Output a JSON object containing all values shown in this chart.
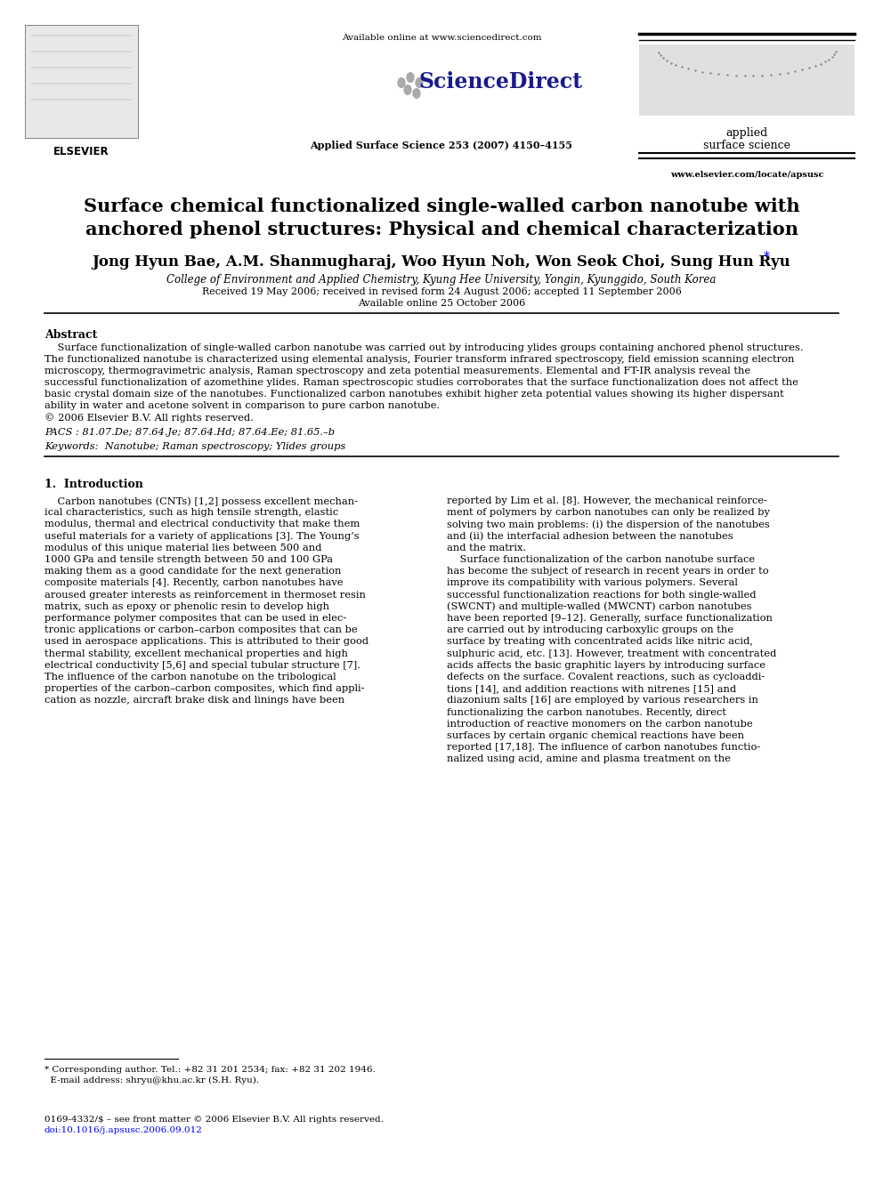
{
  "bg_color": "#ffffff",
  "header_available_text": "Available online at www.sciencedirect.com",
  "header_journal_text": "Applied Surface Science 253 (2007) 4150–4155",
  "journal_name_line1": "applied",
  "journal_name_line2": "surface science",
  "journal_url": "www.elsevier.com/locate/apsusc",
  "elsevier_text": "ELSEVIER",
  "sciencedirect_text": "ScienceDirect",
  "title_line1": "Surface chemical functionalized single-walled carbon nanotube with",
  "title_line2": "anchored phenol structures: Physical and chemical characterization",
  "authors": "Jong Hyun Bae, A.M. Shanmugharaj, Woo Hyun Noh, Won Seok Choi, Sung Hun Ryu",
  "affiliation": "College of Environment and Applied Chemistry, Kyung Hee University, Yongin, Kyunggido, South Korea",
  "received_dates": "Received 19 May 2006; received in revised form 24 August 2006; accepted 11 September 2006",
  "available_online": "Available online 25 October 2006",
  "abstract_title": "Abstract",
  "pacs_text": "PACS : 81.07.De; 87.64.Je; 87.64.Hd; 87.64.Ee; 81.65.–b",
  "keywords_text": "Keywords:  Nanotube; Raman spectroscopy; Ylides groups",
  "section1_title": "1.  Introduction",
  "footer_issn": "0169-4332/$ – see front matter © 2006 Elsevier B.V. All rights reserved.",
  "footer_doi": "doi:10.1016/j.apsusc.2006.09.012",
  "footnote1": "* Corresponding author. Tel.: +82 31 201 2534; fax: +82 31 202 1946.",
  "footnote2": "  E-mail address: shryu@khu.ac.kr (S.H. Ryu).",
  "col1_lines": [
    "    Carbon nanotubes (CNTs) [1,2] possess excellent mechan-",
    "ical characteristics, such as high tensile strength, elastic",
    "modulus, thermal and electrical conductivity that make them",
    "useful materials for a variety of applications [3]. The Young’s",
    "modulus of this unique material lies between 500 and",
    "1000 GPa and tensile strength between 50 and 100 GPa",
    "making them as a good candidate for the next generation",
    "composite materials [4]. Recently, carbon nanotubes have",
    "aroused greater interests as reinforcement in thermoset resin",
    "matrix, such as epoxy or phenolic resin to develop high",
    "performance polymer composites that can be used in elec-",
    "tronic applications or carbon–carbon composites that can be",
    "used in aerospace applications. This is attributed to their good",
    "thermal stability, excellent mechanical properties and high",
    "electrical conductivity [5,6] and special tubular structure [7].",
    "The influence of the carbon nanotube on the tribological",
    "properties of the carbon–carbon composites, which find appli-",
    "cation as nozzle, aircraft brake disk and linings have been"
  ],
  "col2_lines": [
    "reported by Lim et al. [8]. However, the mechanical reinforce-",
    "ment of polymers by carbon nanotubes can only be realized by",
    "solving two main problems: (i) the dispersion of the nanotubes",
    "and (ii) the interfacial adhesion between the nanotubes",
    "and the matrix.",
    "    Surface functionalization of the carbon nanotube surface",
    "has become the subject of research in recent years in order to",
    "improve its compatibility with various polymers. Several",
    "successful functionalization reactions for both single-walled",
    "(SWCNT) and multiple-walled (MWCNT) carbon nanotubes",
    "have been reported [9–12]. Generally, surface functionalization",
    "are carried out by introducing carboxylic groups on the",
    "surface by treating with concentrated acids like nitric acid,",
    "sulphuric acid, etc. [13]. However, treatment with concentrated",
    "acids affects the basic graphitic layers by introducing surface",
    "defects on the surface. Covalent reactions, such as cycloaddi-",
    "tions [14], and addition reactions with nitrenes [15] and",
    "diazonium salts [16] are employed by various researchers in",
    "functionalizing the carbon nanotubes. Recently, direct",
    "introduction of reactive monomers on the carbon nanotube",
    "surfaces by certain organic chemical reactions have been",
    "reported [17,18]. The influence of carbon nanotubes functio-",
    "nalized using acid, amine and plasma treatment on the"
  ],
  "abstract_lines": [
    "    Surface functionalization of single-walled carbon nanotube was carried out by introducing ylides groups containing anchored phenol structures.",
    "The functionalized nanotube is characterized using elemental analysis, Fourier transform infrared spectroscopy, field emission scanning electron",
    "microscopy, thermogravimetric analysis, Raman spectroscopy and zeta potential measurements. Elemental and FT-IR analysis reveal the",
    "successful functionalization of azomethine ylides. Raman spectroscopic studies corroborates that the surface functionalization does not affect the",
    "basic crystal domain size of the nanotubes. Functionalized carbon nanotubes exhibit higher zeta potential values showing its higher dispersant",
    "ability in water and acetone solvent in comparison to pure carbon nanotube.",
    "© 2006 Elsevier B.V. All rights reserved."
  ]
}
